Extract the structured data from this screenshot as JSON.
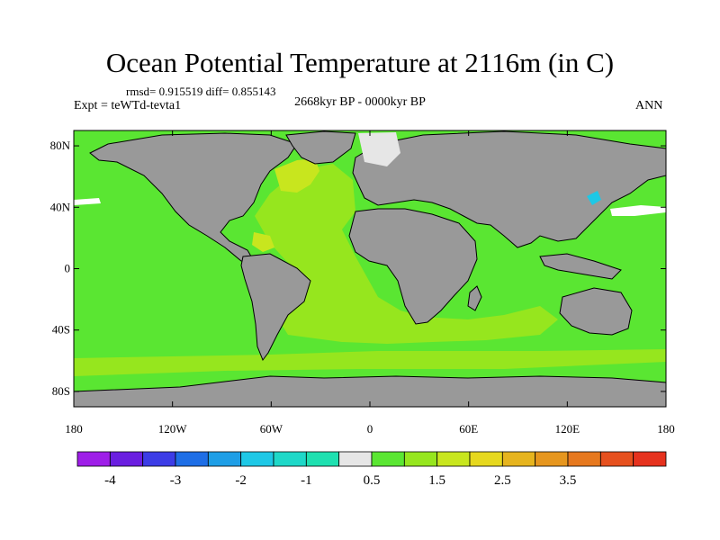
{
  "header": {
    "title": "Ocean Potential Temperature at 2116m (in C)",
    "stats": "rmsd= 0.915519 diff= 0.855143",
    "experiment": "Expt = teWTd-tevta1",
    "period": "2668kyr BP - 0000kyr BP",
    "season": "ANN"
  },
  "map": {
    "land_color": "#999999",
    "lat_ticks": [
      "80N",
      "40N",
      "0",
      "40S",
      "80S"
    ],
    "lat_values": [
      80,
      40,
      0,
      -40,
      -80
    ],
    "lon_ticks": [
      "180",
      "120W",
      "60W",
      "0",
      "60E",
      "120E",
      "180"
    ],
    "lon_values": [
      -180,
      -120,
      -60,
      0,
      60,
      120,
      180
    ]
  },
  "colorbar": {
    "colors": [
      "#9e1ee8",
      "#6a1ee0",
      "#3c3ce6",
      "#1e6ee6",
      "#1e9ee6",
      "#1ec8e6",
      "#1ed8c8",
      "#1ee0b0",
      "#e6e6e6",
      "#5ae632",
      "#96e61e",
      "#c8e61e",
      "#e6d81e",
      "#e6b41e",
      "#e6961e",
      "#e6781e",
      "#e6501e",
      "#e6321e"
    ],
    "labels": [
      "-4",
      "-3",
      "-2",
      "-1",
      "0.5",
      "1.5",
      "2.5",
      "3.5"
    ]
  }
}
